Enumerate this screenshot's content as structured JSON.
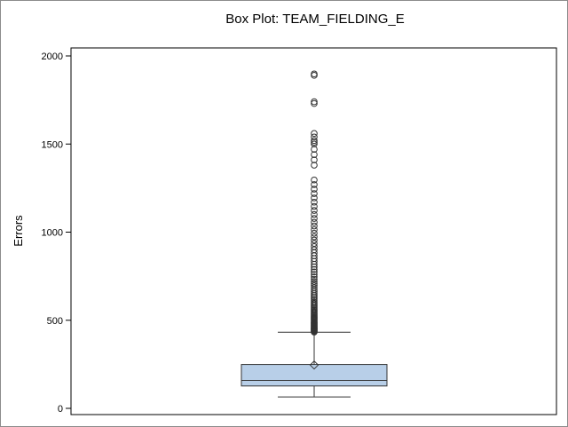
{
  "chart_data": {
    "type": "box",
    "title": "Box Plot: TEAM_FIELDING_E",
    "xlabel": "",
    "ylabel": "Errors",
    "ylim": [
      0,
      2000
    ],
    "yticks": [
      0,
      500,
      1000,
      1500,
      2000
    ],
    "grid": false,
    "series": [
      {
        "min": 65,
        "q1": 127,
        "median": 159,
        "mean": 246,
        "q3": 249,
        "upper_whisker": 432,
        "outliers": [
          433,
          436,
          440,
          443,
          446,
          449,
          452,
          455,
          458,
          462,
          466,
          470,
          474,
          478,
          482,
          486,
          490,
          495,
          500,
          505,
          510,
          515,
          520,
          526,
          532,
          538,
          544,
          550,
          557,
          564,
          571,
          578,
          586,
          594,
          602,
          611,
          620,
          630,
          640,
          650,
          661,
          672,
          684,
          696,
          708,
          720,
          733,
          746,
          760,
          774,
          788,
          803,
          818,
          834,
          850,
          866,
          883,
          900,
          918,
          936,
          955,
          974,
          994,
          1014,
          1035,
          1056,
          1078,
          1100,
          1123,
          1146,
          1170,
          1194,
          1219,
          1244,
          1270,
          1296,
          1380,
          1410,
          1440,
          1470,
          1500,
          1510,
          1520,
          1540,
          1560,
          1730,
          1740,
          1890,
          1898
        ]
      }
    ],
    "colors": {
      "box_fill": "#b8cfe8",
      "box_stroke": "#333333",
      "axis": "#000000",
      "marker": "#333333"
    }
  }
}
